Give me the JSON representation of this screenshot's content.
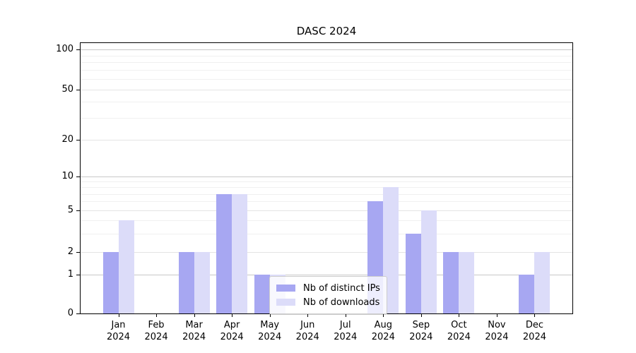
{
  "chart_data": {
    "type": "bar",
    "title": "DASC 2024",
    "categories": [
      "Jan",
      "Feb",
      "Mar",
      "Apr",
      "May",
      "Jun",
      "Jul",
      "Aug",
      "Sep",
      "Oct",
      "Nov",
      "Dec"
    ],
    "category_year_suffix": "2024",
    "series": [
      {
        "name": "Nb of distinct IPs",
        "color": "#a7a7f2",
        "values": [
          2,
          0,
          2,
          7,
          1,
          0,
          0,
          6,
          3,
          2,
          0,
          1
        ]
      },
      {
        "name": "Nb of downloads",
        "color": "#dcdcf9",
        "values": [
          4,
          0,
          2,
          7,
          1,
          0,
          0,
          8,
          5,
          2,
          0,
          2
        ]
      }
    ],
    "y_axis": {
      "tick_labels": [
        "0",
        "1",
        "2",
        "5",
        "10",
        "20",
        "50",
        "100"
      ],
      "tick_values": [
        0,
        1,
        2,
        5,
        10,
        20,
        50,
        100
      ],
      "minor_tick_values": [
        3,
        4,
        6,
        7,
        8,
        9,
        30,
        40,
        60,
        70,
        80,
        90
      ],
      "scale": "log-above-1-linear-below",
      "range": [
        0,
        110
      ]
    },
    "grid": true,
    "legend": {
      "position": "lower-center-left",
      "entries": [
        "Nb of distinct IPs",
        "Nb of downloads"
      ]
    },
    "colors": {
      "axis": "#000000",
      "major_gridline": "#c8c8c8",
      "sub_gridline": "#e4e4e4",
      "minor_gridline": "#f0f0f0",
      "background": "#ffffff"
    }
  }
}
